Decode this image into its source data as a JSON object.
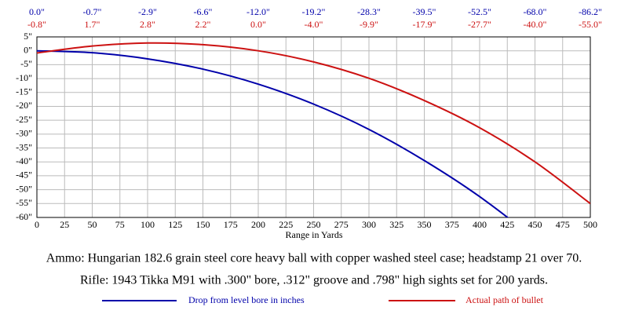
{
  "chart_data": {
    "type": "line",
    "x": [
      0,
      50,
      100,
      150,
      200,
      250,
      300,
      350,
      400,
      450,
      500
    ],
    "series": [
      {
        "name": "Drop from level bore in inches",
        "color": "#0000aa",
        "values": [
          0,
          -0.7,
          -2.9,
          -6.6,
          -12.0,
          -19.2,
          -28.3,
          -39.5,
          -52.5,
          -68.0,
          -86.2
        ],
        "value_labels": [
          "0.0\"",
          "-0.7\"",
          "-2.9\"",
          "-6.6\"",
          "-12.0\"",
          "-19.2\"",
          "-28.3\"",
          "-39.5\"",
          "-52.5\"",
          "-68.0\"",
          "-86.2\""
        ]
      },
      {
        "name": "Actual path of bullet",
        "color": "#cc1111",
        "values": [
          -0.8,
          1.7,
          2.8,
          2.2,
          0,
          -4.0,
          -9.9,
          -17.9,
          -27.7,
          -40.0,
          -55.0
        ],
        "value_labels": [
          "-0.8\"",
          "1.7\"",
          "2.8\"",
          "2.2\"",
          "0.0\"",
          "-4.0\"",
          "-9.9\"",
          "-17.9\"",
          "-27.7\"",
          "-40.0\"",
          "-55.0\""
        ]
      }
    ],
    "xlabel": "Range in Yards",
    "xlim": [
      0,
      500
    ],
    "xticks": [
      0,
      25,
      50,
      75,
      100,
      125,
      150,
      175,
      200,
      225,
      250,
      275,
      300,
      325,
      350,
      375,
      400,
      425,
      450,
      475,
      500
    ],
    "ylim": [
      -60,
      5
    ],
    "yticks": [
      {
        "value": 5,
        "label": "5\""
      },
      {
        "value": 0,
        "label": "0\""
      },
      {
        "value": -5,
        "label": "-5\""
      },
      {
        "value": -10,
        "label": "-10\""
      },
      {
        "value": -15,
        "label": "-15\""
      },
      {
        "value": -20,
        "label": "-20\""
      },
      {
        "value": -25,
        "label": "-25\""
      },
      {
        "value": -30,
        "label": "-30\""
      },
      {
        "value": -35,
        "label": "-35\""
      },
      {
        "value": -40,
        "label": "-40\""
      },
      {
        "value": -45,
        "label": "-45\""
      },
      {
        "value": -50,
        "label": "-50\""
      },
      {
        "value": -55,
        "label": "-55\""
      },
      {
        "value": -60,
        "label": "-60\""
      }
    ],
    "grid": true,
    "captions": [
      "Ammo:  Hungarian 182.6 grain steel core heavy ball with copper washed steel case; headstamp 21 over 70.",
      "Rifle:  1943 Tikka M91 with .300\" bore, .312\" groove and .798\" high sights set for 200 yards."
    ]
  }
}
